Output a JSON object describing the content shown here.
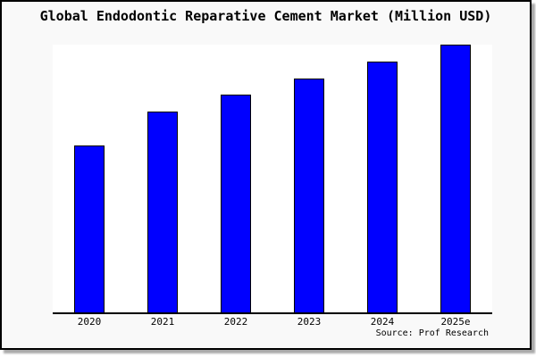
{
  "chart_data": {
    "type": "bar",
    "title": "Global Endodontic Reparative Cement Market (Million USD)",
    "categories": [
      "2020",
      "2021",
      "2022",
      "2023",
      "2024",
      "2025e"
    ],
    "values": [
      62.5,
      75,
      81.3,
      87.3,
      93.7,
      100
    ],
    "value_scale_note": "No y-axis tick labels are shown in the image; values are relative bar heights with the tallest bar (2025e) = 100.",
    "xlabel": "",
    "ylabel": "",
    "ylim": [
      0,
      100
    ],
    "y_axis_labels_visible": false,
    "grid": false,
    "legend_position": "none",
    "bar_color": "#0000ff",
    "bar_border_color": "#000000"
  },
  "source": {
    "text": "Source: Prof Research"
  },
  "colors": {
    "figure_background": "#f9f9f9",
    "plot_background": "#ffffff",
    "figure_border": "#000000",
    "shadow": "#a9a9a9",
    "axis_line": "#000000",
    "text": "#000000"
  }
}
